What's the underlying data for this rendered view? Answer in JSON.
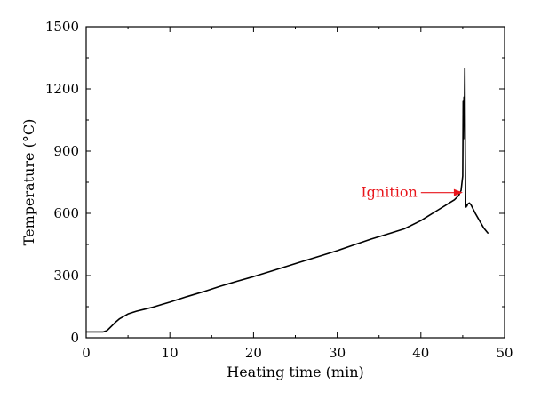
{
  "chart_data": {
    "type": "line",
    "xlabel": "Heating time (min)",
    "ylabel": "Temperature (°C)",
    "xlim": [
      0,
      50
    ],
    "ylim": [
      0,
      1500
    ],
    "xticks": [
      0,
      10,
      20,
      30,
      40,
      50
    ],
    "yticks": [
      0,
      300,
      600,
      900,
      1200,
      1500
    ],
    "grid": false,
    "legend": "none",
    "series": [
      {
        "color": "#000000",
        "x": [
          0,
          1,
          2,
          2.5,
          3,
          3.5,
          4,
          5,
          6,
          7,
          8,
          9,
          10,
          12,
          14,
          16,
          18,
          20,
          22,
          24,
          26,
          28,
          30,
          32,
          34,
          36,
          38,
          40,
          41,
          42,
          43,
          44,
          44.5,
          44.8,
          45.0,
          45.05,
          45.1,
          45.15,
          45.2,
          45.25,
          45.3,
          45.35,
          45.4,
          45.45,
          45.5,
          45.6,
          45.8,
          46.0,
          46.5,
          47.0,
          47.5,
          48.0
        ],
        "y": [
          28,
          28,
          28,
          35,
          55,
          75,
          92,
          115,
          128,
          138,
          148,
          160,
          172,
          198,
          222,
          248,
          272,
          295,
          320,
          345,
          370,
          395,
          420,
          448,
          475,
          500,
          525,
          565,
          590,
          615,
          640,
          665,
          685,
          710,
          780,
          1140,
          960,
          1160,
          1080,
          1300,
          900,
          650,
          630,
          640,
          635,
          645,
          650,
          640,
          600,
          565,
          530,
          505
        ]
      }
    ],
    "annotations": [
      {
        "text": "Ignition",
        "color": "#e8151b",
        "x": 45.0,
        "y": 700,
        "arrow_from_x": 40.0
      }
    ]
  }
}
